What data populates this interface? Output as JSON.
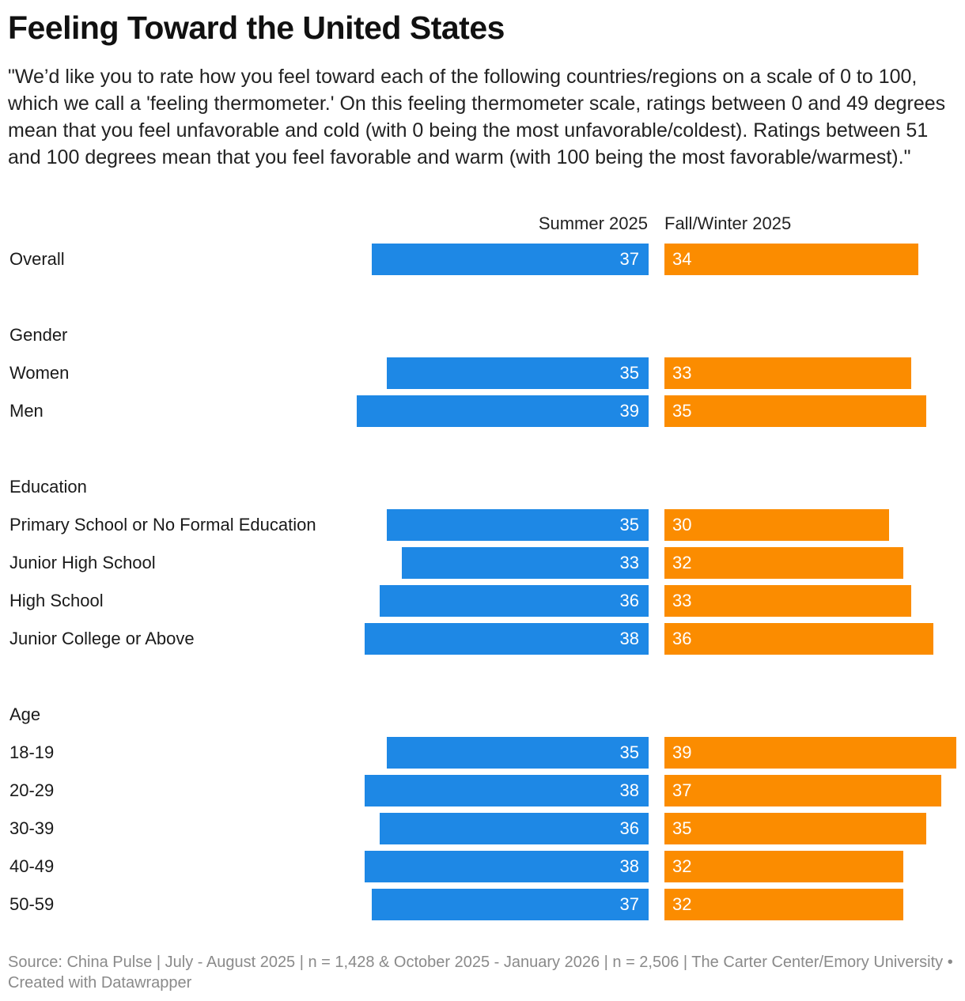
{
  "title": "Feeling Toward the United States",
  "subtitle": "\"We’d like you to rate how you feel toward each of the following countries/regions on a scale of 0 to 100, which we call a 'feeling thermometer.' On this feeling thermometer scale, ratings between 0 and 49 degrees mean that you feel unfavorable and cold (with 0 being the most unfavorable/coldest). Ratings between 51 and 100 degrees mean that you feel favorable and warm (with 100 being the most favorable/warmest).\"",
  "footer": "Source: China Pulse | July - August 2025 | n = 1,428 & October 2025 - January 2026 | n = 2,506 | The Carter Center/Emory University • Created with Datawrapper",
  "colors": {
    "summer": "#1e88e5",
    "fall_winter": "#fb8c00"
  },
  "chart_data": {
    "type": "bar",
    "title": "Feeling Toward the United States",
    "series": [
      {
        "name": "Summer 2025",
        "color": "#1e88e5"
      },
      {
        "name": "Fall/Winter 2025",
        "color": "#fb8c00"
      }
    ],
    "groups": [
      {
        "label": "",
        "rows": [
          {
            "category": "Overall",
            "values": [
              37,
              34
            ]
          }
        ]
      },
      {
        "label": "Gender",
        "rows": [
          {
            "category": "Women",
            "values": [
              35,
              33
            ]
          },
          {
            "category": "Men",
            "values": [
              39,
              35
            ]
          }
        ]
      },
      {
        "label": "Education",
        "rows": [
          {
            "category": "Primary School or No Formal Education",
            "values": [
              35,
              30
            ]
          },
          {
            "category": "Junior High School",
            "values": [
              33,
              32
            ]
          },
          {
            "category": "High School",
            "values": [
              36,
              33
            ]
          },
          {
            "category": "Junior College or Above",
            "values": [
              38,
              36
            ]
          }
        ]
      },
      {
        "label": "Age",
        "rows": [
          {
            "category": "18-19",
            "values": [
              35,
              39
            ]
          },
          {
            "category": "20-29",
            "values": [
              38,
              37
            ]
          },
          {
            "category": "30-39",
            "values": [
              36,
              35
            ]
          },
          {
            "category": "40-49",
            "values": [
              38,
              32
            ]
          },
          {
            "category": "50-59",
            "values": [
              37,
              32
            ]
          }
        ]
      }
    ]
  }
}
